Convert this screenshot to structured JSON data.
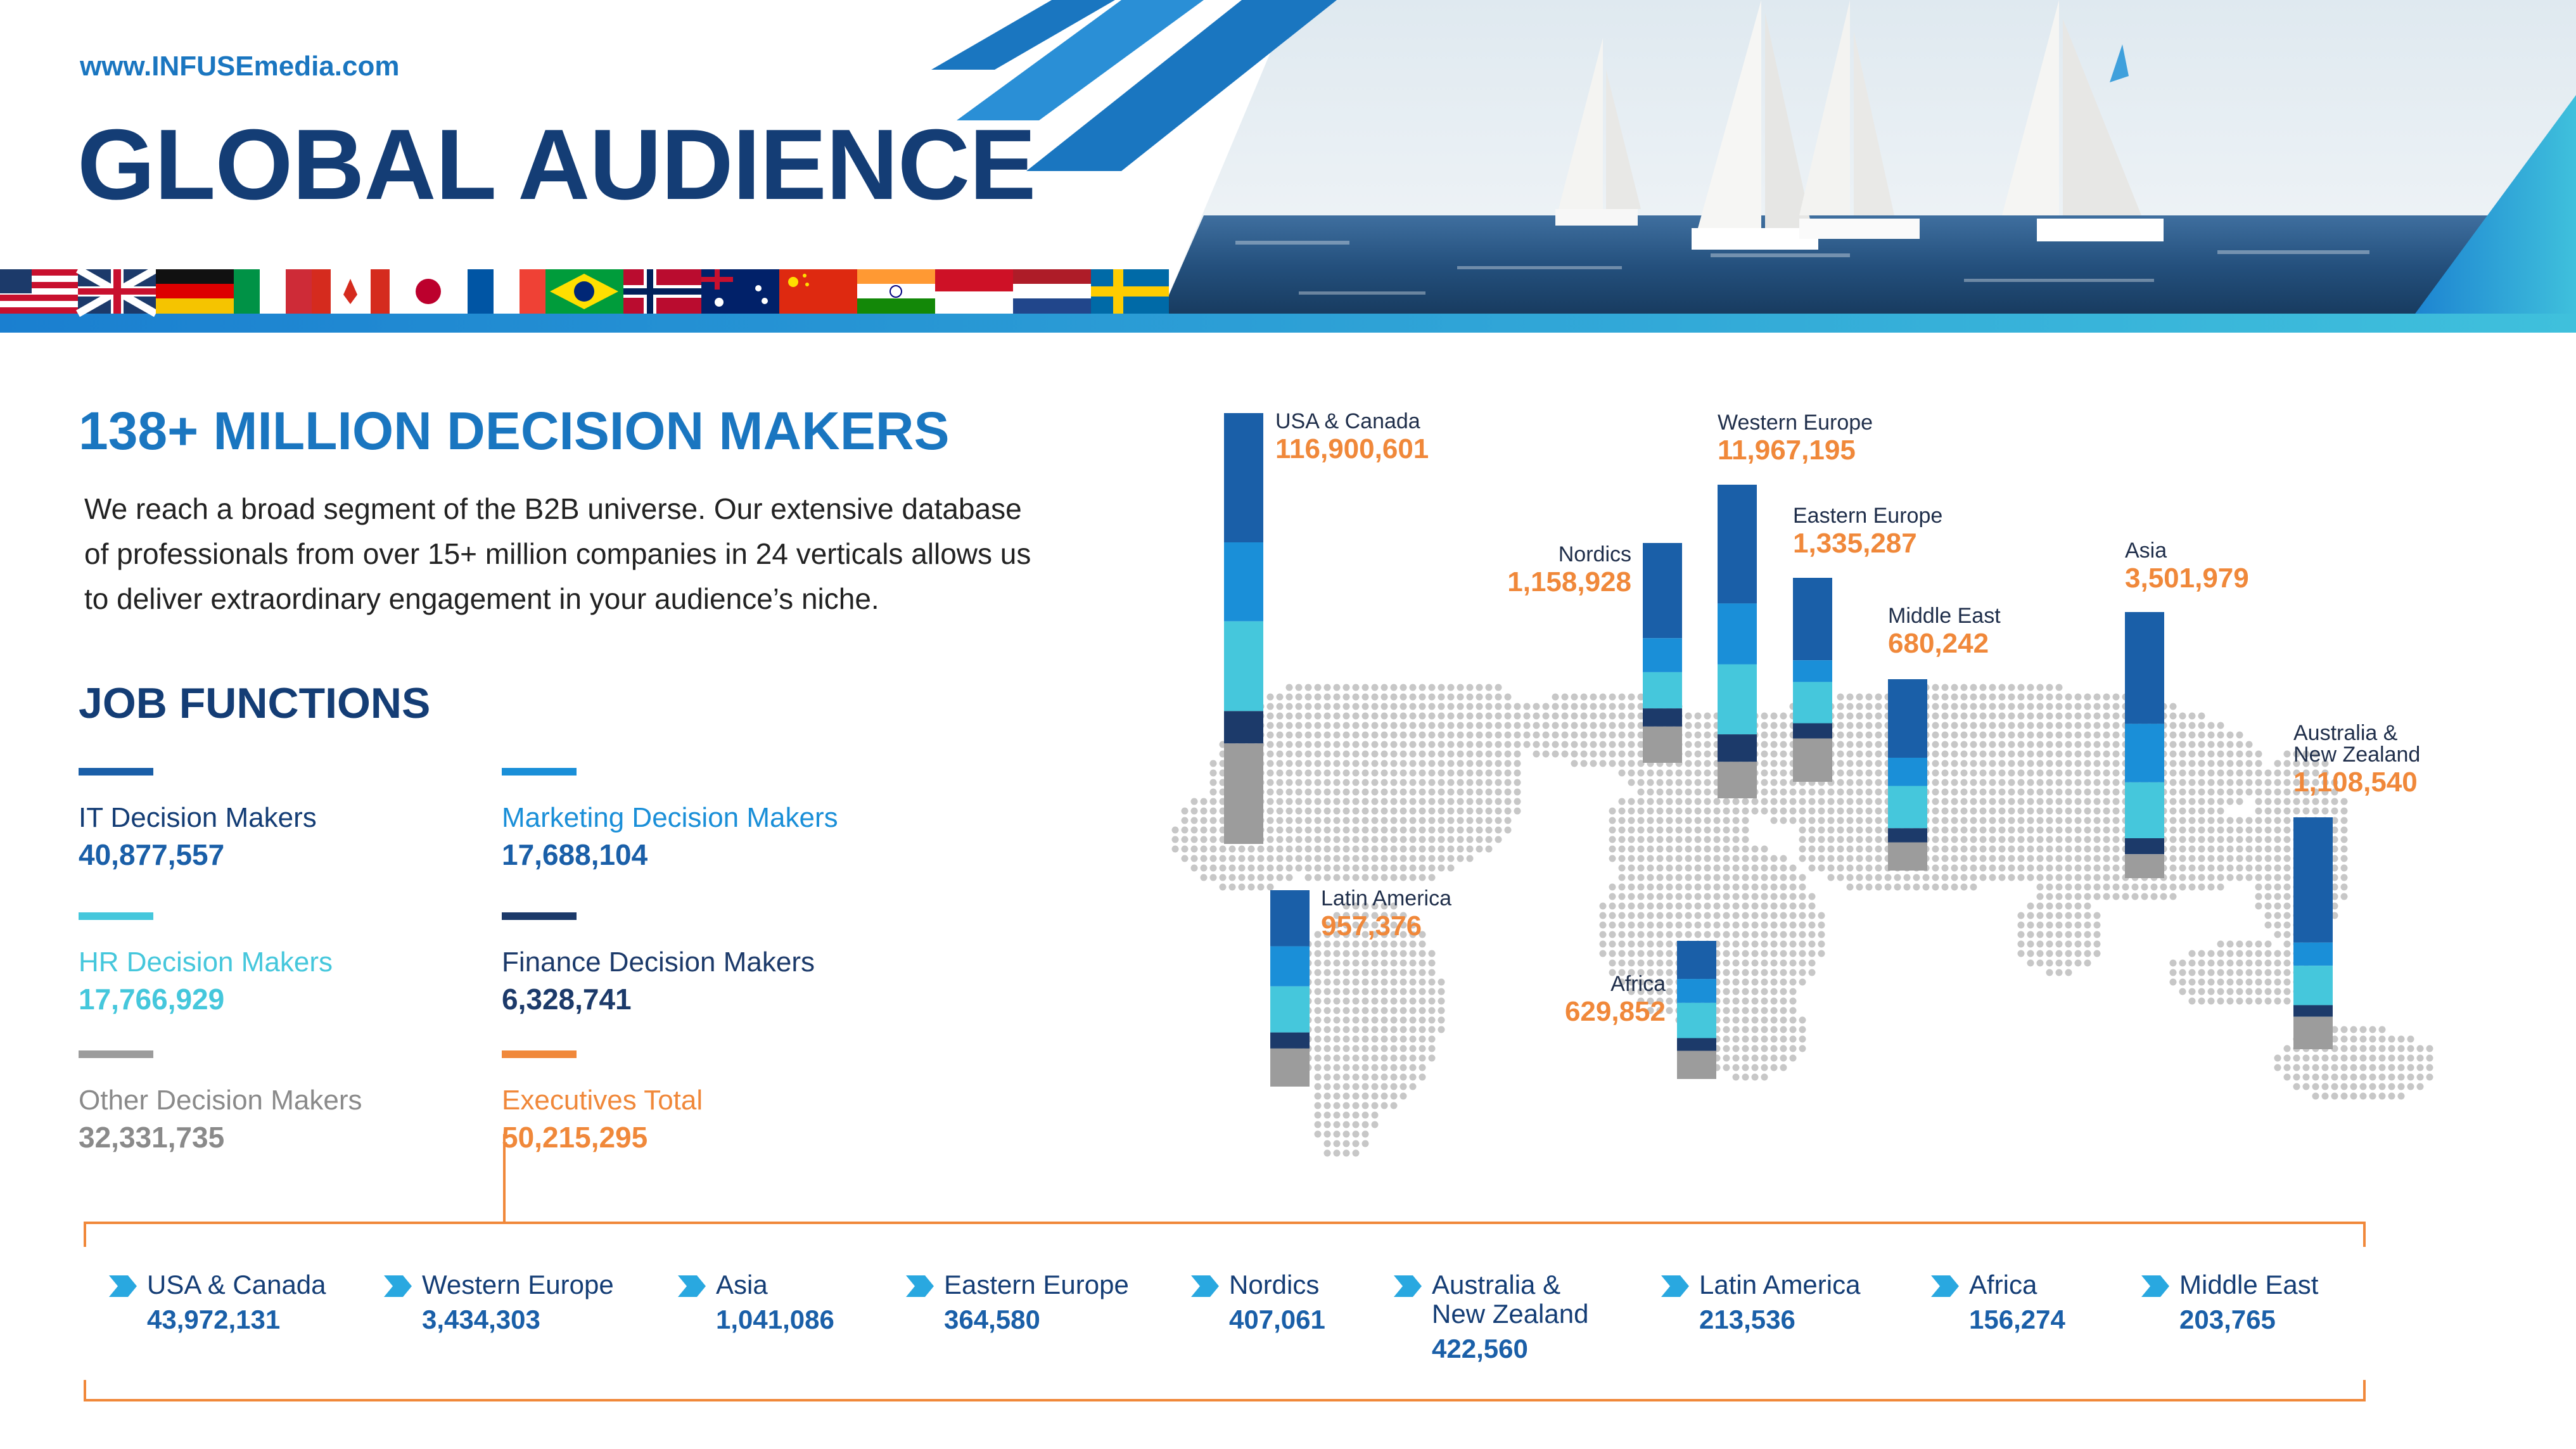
{
  "header": {
    "url": "www.INFUSEmedia.com",
    "title": "GLOBAL AUDIENCE",
    "flags": [
      "us-flag",
      "uk-flag",
      "germany-flag",
      "italy-flag",
      "canada-flag",
      "japan-flag",
      "france-flag",
      "brazil-flag",
      "norway-flag",
      "australia-flag",
      "china-flag",
      "india-flag",
      "indonesia-flag",
      "netherlands-flag",
      "sweden-flag"
    ]
  },
  "intro": {
    "heading": "138+ MILLION DECISION MAKERS",
    "body_lines": [
      "We reach a broad segment of the B2B universe. Our extensive database",
      "of professionals from over 15+ million companies in 24 verticals allows us",
      "to deliver extraordinary engagement in your audience’s niche."
    ]
  },
  "job_functions": {
    "heading": "JOB FUNCTIONS",
    "items": [
      {
        "label": "IT Decision Makers",
        "value": "40,877,557",
        "color": "#1a5fa8",
        "label_color": "#143d75",
        "value_color": "#1a5fa8"
      },
      {
        "label": "Marketing Decision Makers",
        "value": "17,688,104",
        "color": "#1a8fd8",
        "label_color": "#1a8fd8",
        "value_color": "#1a5fa8"
      },
      {
        "label": "HR Decision Makers",
        "value": "17,766,929",
        "color": "#45c7dc",
        "label_color": "#45c7dc",
        "value_color": "#45c7dc"
      },
      {
        "label": "Finance Decision Makers",
        "value": "6,328,741",
        "color": "#1c3a6a",
        "label_color": "#1c3a6a",
        "value_color": "#1c3a6a"
      },
      {
        "label": "Other Decision Makers",
        "value": "32,331,735",
        "color": "#9c9c9c",
        "label_color": "#8a8a8a",
        "value_color": "#8a8a8a"
      },
      {
        "label": "Executives Total",
        "value": "50,215,295",
        "color": "#f0883a",
        "label_color": "#f0883a",
        "value_color": "#f0883a"
      }
    ]
  },
  "executives_by_region": [
    {
      "label": "USA & Canada",
      "value": "43,972,131"
    },
    {
      "label": "Western Europe",
      "value": "3,434,303"
    },
    {
      "label": "Asia",
      "value": "1,041,086"
    },
    {
      "label": "Eastern Europe",
      "value": "364,580"
    },
    {
      "label": "Nordics",
      "value": "407,061"
    },
    {
      "label": "Australia & New Zealand",
      "label_lines": [
        "Australia &",
        "New Zealand"
      ],
      "value": "422,560"
    },
    {
      "label": "Latin America",
      "value": "213,536"
    },
    {
      "label": "Africa",
      "value": "156,274"
    },
    {
      "label": "Asia",
      "value": "203,765"
    },
    {
      "label": "Middle East",
      "value": "203,765"
    }
  ],
  "colors": {
    "it": "#1a5fa8",
    "marketing": "#1a8fd8",
    "hr": "#45c7dc",
    "finance": "#1c3a6a",
    "other": "#9c9c9c",
    "accent": "#f0883a",
    "navy": "#143d75",
    "blue": "#1a76c0"
  },
  "chart_data": {
    "type": "bar",
    "stack_order": [
      "IT",
      "Marketing",
      "HR",
      "Finance",
      "Other"
    ],
    "regions": [
      {
        "name": "USA & Canada",
        "label_lines": [
          "USA & Canada"
        ],
        "total": 116900601,
        "total_label": "116,900,601",
        "shares": [
          0.36,
          0.22,
          0.25,
          0.09,
          0.28
        ]
      },
      {
        "name": "Nordics",
        "label_lines": [
          "Nordics"
        ],
        "total": 1158928,
        "total_label": "1,158,928",
        "shares": [
          0.42,
          0.15,
          0.16,
          0.08,
          0.16
        ]
      },
      {
        "name": "Western Europe",
        "label_lines": [
          "Western Europe"
        ],
        "total": 11967195,
        "total_label": "11,967,195",
        "shares": [
          0.39,
          0.2,
          0.23,
          0.09,
          0.12
        ]
      },
      {
        "name": "Eastern Europe",
        "label_lines": [
          "Eastern Europe"
        ],
        "total": 1335287,
        "total_label": "1,335,287",
        "shares": [
          0.38,
          0.1,
          0.19,
          0.07,
          0.2
        ]
      },
      {
        "name": "Middle East",
        "label_lines": [
          "Middle East"
        ],
        "total": 680242,
        "total_label": "680,242",
        "shares": [
          0.39,
          0.14,
          0.21,
          0.07,
          0.14
        ]
      },
      {
        "name": "Asia",
        "label_lines": [
          "Asia"
        ],
        "total": 3501979,
        "total_label": "3,501,979",
        "shares": [
          0.42,
          0.22,
          0.21,
          0.06,
          0.09
        ]
      },
      {
        "name": "Australia & New Zealand",
        "label_lines": [
          "Australia &",
          "New Zealand"
        ],
        "total": 1108540,
        "total_label": "1,108,540",
        "shares": [
          0.54,
          0.1,
          0.17,
          0.05,
          0.14
        ]
      },
      {
        "name": "Latin America",
        "label_lines": [
          "Latin America"
        ],
        "total": 957376,
        "total_label": "957,376",
        "shares": [
          0.28,
          0.2,
          0.23,
          0.08,
          0.19
        ]
      },
      {
        "name": "Africa",
        "label_lines": [
          "Africa"
        ],
        "total": 629852,
        "total_label": "629,852",
        "shares": [
          0.27,
          0.17,
          0.25,
          0.09,
          0.2
        ]
      }
    ]
  }
}
